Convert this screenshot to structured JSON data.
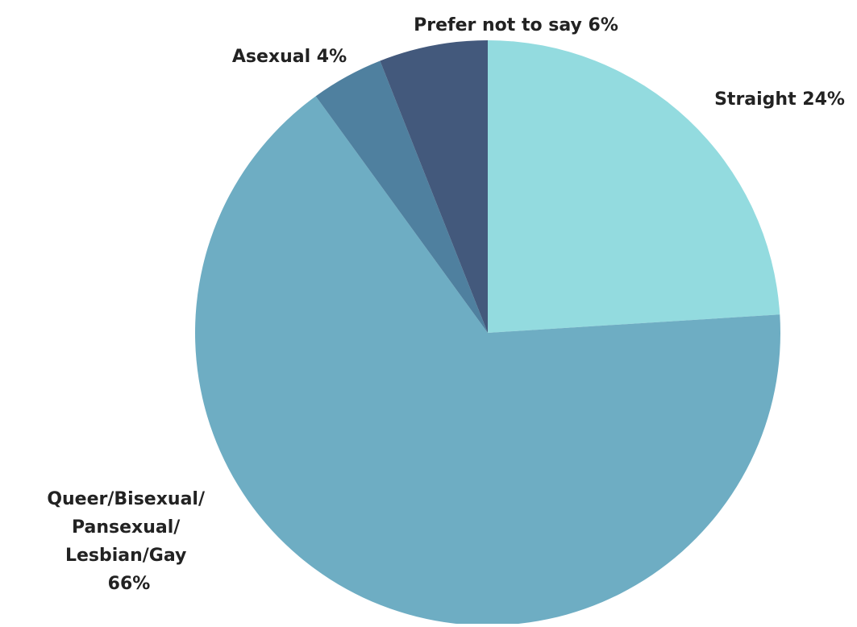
{
  "chart_data": {
    "type": "pie",
    "slices": [
      {
        "label": "Straight 24%",
        "value": 24,
        "color": "#93dbdf"
      },
      {
        "label": "Queer/Bisexual/ Pansexual/ Lesbian/Gay 66%",
        "label_lines": [
          "Queer/Bisexual/",
          "Pansexual/",
          "Lesbian/Gay",
          "66%"
        ],
        "value": 66,
        "color": "#6eadc3"
      },
      {
        "label": "Asexual 4%",
        "value": 4,
        "color": "#4f809f"
      },
      {
        "label": "Prefer not to say 6%",
        "value": 6,
        "color": "#43597c"
      }
    ],
    "start_angle": "12 o'clock",
    "direction": "clockwise",
    "legend": "none"
  }
}
